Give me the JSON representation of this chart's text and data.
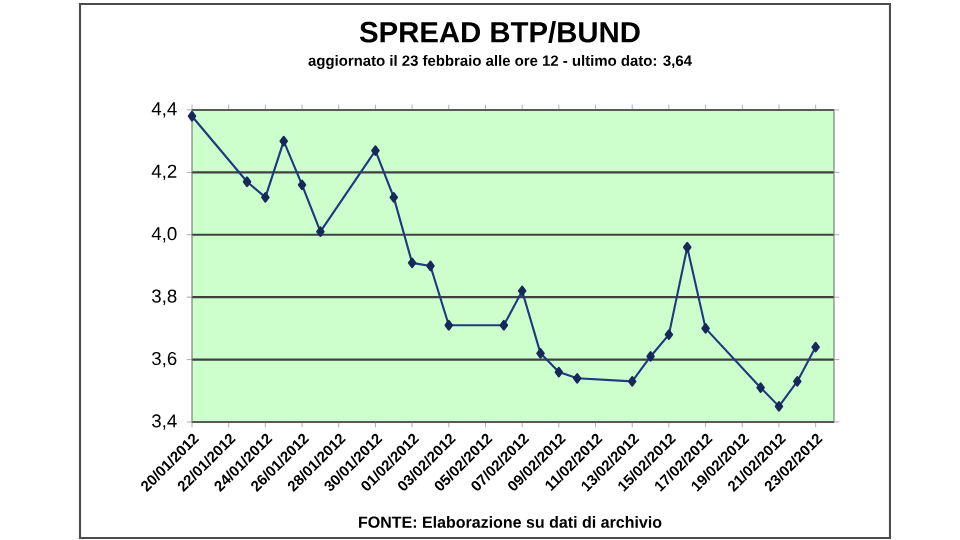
{
  "chart_data": {
    "type": "line",
    "title": "SPREAD BTP/BUND",
    "subtitle": "aggiornato il 23 febbraio alle ore 12 - ultimo dato: 3,64",
    "annotations": [
      "FONTE: Elaborazione su dati di archivio"
    ],
    "x": [
      "2012-01-20",
      "2012-01-23",
      "2012-01-24",
      "2012-01-25",
      "2012-01-26",
      "2012-01-27",
      "2012-01-30",
      "2012-01-31",
      "2012-02-01",
      "2012-02-02",
      "2012-02-03",
      "2012-02-06",
      "2012-02-07",
      "2012-02-08",
      "2012-02-09",
      "2012-02-10",
      "2012-02-13",
      "2012-02-14",
      "2012-02-15",
      "2012-02-16",
      "2012-02-17",
      "2012-02-20",
      "2012-02-21",
      "2012-02-22",
      "2012-02-23"
    ],
    "series": [
      {
        "color": "#1f3a80",
        "values": [
          4.38,
          4.17,
          4.12,
          4.3,
          4.16,
          4.01,
          4.27,
          4.12,
          3.91,
          3.9,
          3.71,
          3.71,
          3.82,
          3.62,
          3.56,
          3.54,
          3.53,
          3.61,
          3.68,
          3.96,
          3.7,
          3.51,
          3.45,
          3.53,
          3.64
        ]
      }
    ],
    "xlim": [
      "2012-01-20",
      "2012-02-24"
    ],
    "xticks": [
      {
        "value": "2012-01-20",
        "label": "20/01/2012"
      },
      {
        "value": "2012-01-22",
        "label": "22/01/2012"
      },
      {
        "value": "2012-01-24",
        "label": "24/01/2012"
      },
      {
        "value": "2012-01-26",
        "label": "26/01/2012"
      },
      {
        "value": "2012-01-28",
        "label": "28/01/2012"
      },
      {
        "value": "2012-01-30",
        "label": "30/01/2012"
      },
      {
        "value": "2012-02-01",
        "label": "01/02/2012"
      },
      {
        "value": "2012-02-03",
        "label": "03/02/2012"
      },
      {
        "value": "2012-02-05",
        "label": "05/02/2012"
      },
      {
        "value": "2012-02-07",
        "label": "07/02/2012"
      },
      {
        "value": "2012-02-09",
        "label": "09/02/2012"
      },
      {
        "value": "2012-02-11",
        "label": "11/02/2012"
      },
      {
        "value": "2012-02-13",
        "label": "13/02/2012"
      },
      {
        "value": "2012-02-15",
        "label": "15/02/2012"
      },
      {
        "value": "2012-02-17",
        "label": "17/02/2012"
      },
      {
        "value": "2012-02-19",
        "label": "19/02/2012"
      },
      {
        "value": "2012-02-21",
        "label": "21/02/2012"
      },
      {
        "value": "2012-02-23",
        "label": "23/02/2012"
      }
    ],
    "ylim": [
      3.4,
      4.4
    ],
    "yticks": [
      {
        "value": 3.4,
        "label": "3,4"
      },
      {
        "value": 3.6,
        "label": "3,6"
      },
      {
        "value": 3.8,
        "label": "3,8"
      },
      {
        "value": 4.0,
        "label": "4,0"
      },
      {
        "value": 4.2,
        "label": "4,2"
      },
      {
        "value": 4.4,
        "label": "4,4"
      }
    ],
    "grid": "y",
    "marker": "diamond",
    "line_style": "solid"
  }
}
